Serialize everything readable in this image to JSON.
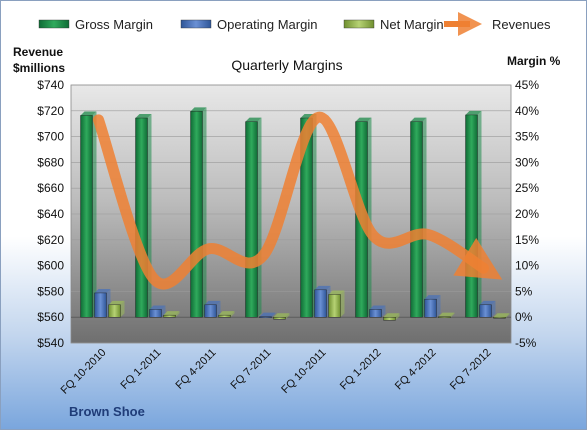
{
  "chart_data": {
    "type": "bar",
    "title": "Quarterly Margins",
    "company": "Brown Shoe",
    "y_left_label": [
      "Revenue",
      "$millions"
    ],
    "y_right_label": "Margin %",
    "y_left_range": [
      540,
      740
    ],
    "y_left_ticks": [
      "$540",
      "$560",
      "$580",
      "$600",
      "$620",
      "$640",
      "$660",
      "$680",
      "$700",
      "$720",
      "$740"
    ],
    "y_right_range": [
      -5,
      45
    ],
    "y_right_ticks": [
      "-5%",
      "0%",
      "5%",
      "10%",
      "15%",
      "20%",
      "25%",
      "30%",
      "35%",
      "40%",
      "45%"
    ],
    "grid": true,
    "legend_position": "top",
    "categories": [
      "FQ 10-2010",
      "FQ 1-2011",
      "FQ 4-2011",
      "FQ 7-2011",
      "FQ 10-2011",
      "FQ 1-2012",
      "FQ 4-2012",
      "FQ 7-2012"
    ],
    "series": [
      {
        "name": "Gross Margin",
        "axis": "right",
        "kind": "bar",
        "color": "#1e8a4a",
        "values": [
          39.1,
          38.6,
          39.9,
          37.9,
          38.6,
          37.9,
          37.9,
          39.2
        ]
      },
      {
        "name": "Operating Margin",
        "axis": "right",
        "kind": "bar",
        "color": "#4a72b8",
        "values": [
          4.7,
          1.5,
          2.4,
          0.1,
          5.3,
          1.5,
          3.5,
          2.4
        ]
      },
      {
        "name": "Net Margin",
        "axis": "right",
        "kind": "bar",
        "color": "#9bbb59",
        "values": [
          2.4,
          0.4,
          0.4,
          -0.4,
          4.4,
          -0.6,
          0.1,
          -0.1
        ]
      },
      {
        "name": "Revenues",
        "axis": "left",
        "kind": "line",
        "color": "#ee8033",
        "values": [
          713,
          590,
          613,
          608,
          715,
          623,
          624,
          598
        ]
      }
    ]
  }
}
